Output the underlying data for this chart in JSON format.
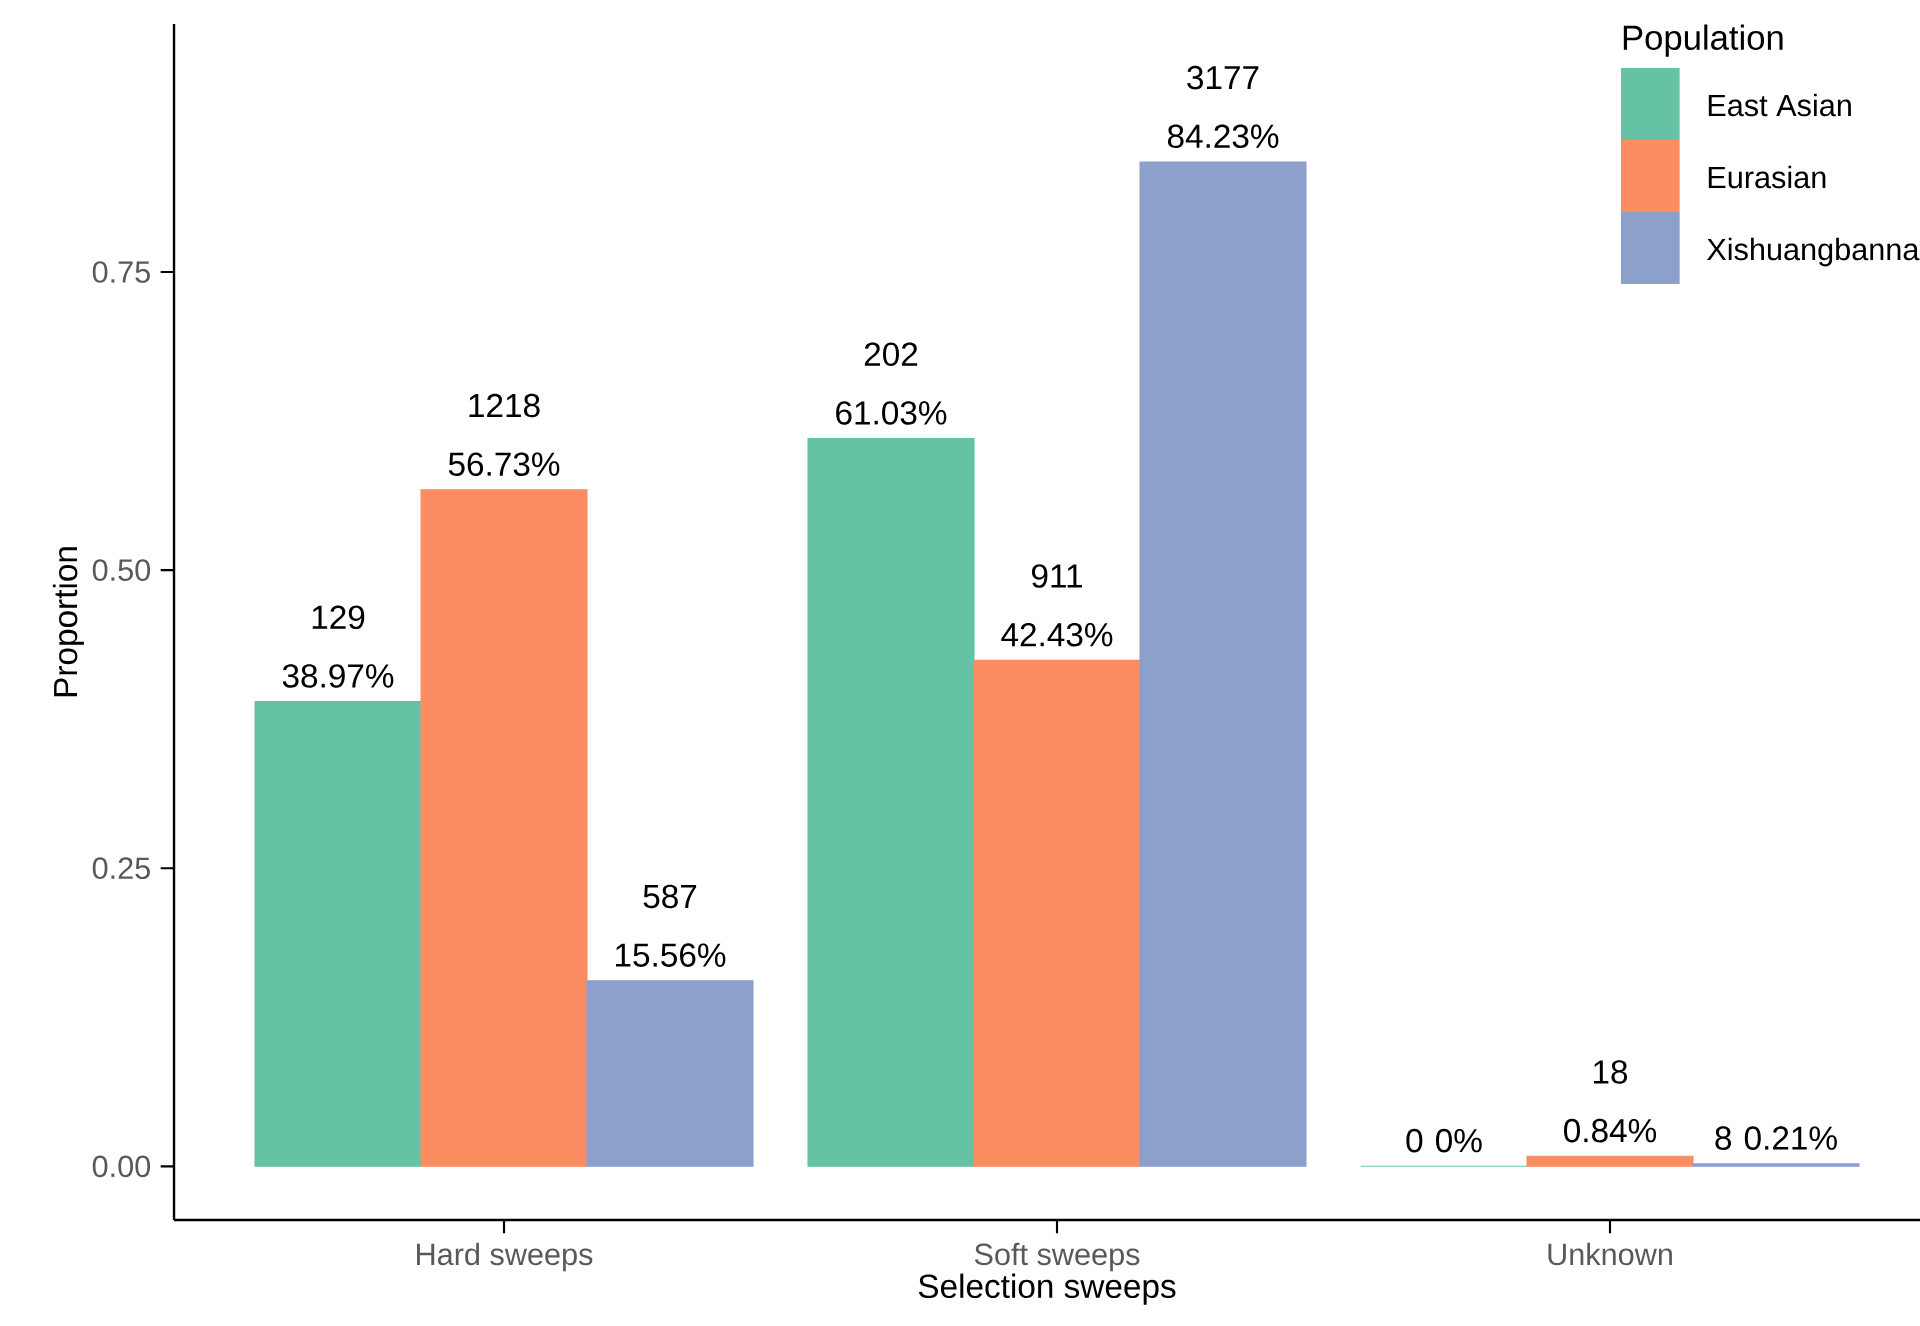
{
  "chart_data": {
    "type": "bar",
    "xlabel": "Selection sweeps",
    "ylabel": "Proportion",
    "legend_title": "Population",
    "categories": [
      "Hard sweeps",
      "Soft sweeps",
      "Unknown"
    ],
    "series": [
      {
        "name": "East Asian",
        "color": "#66c2a5",
        "values": [
          0.3897,
          0.6103,
          0
        ],
        "value_labels": [
          "129 38.97%",
          "202 61.03%",
          "0 0%"
        ]
      },
      {
        "name": "Eurasian",
        "color": "#fc8d62",
        "values": [
          0.5673,
          0.4243,
          0.0084
        ],
        "value_labels": [
          "1218 56.73%",
          "911 42.43%",
          "18 0.84%"
        ]
      },
      {
        "name": "Xishuangbanna",
        "color": "#8da0cb",
        "values": [
          0.1556,
          0.8423,
          0.0021
        ],
        "value_labels": [
          "587 15.56%",
          "3177 84.23%",
          "8 0.21%"
        ]
      }
    ],
    "ylim": [
      -0.045,
      0.958
    ],
    "yticks": [
      {
        "value": 0,
        "label": "0.00"
      },
      {
        "value": 0.25,
        "label": "0.25"
      },
      {
        "value": 0.5,
        "label": "0.50"
      },
      {
        "value": 0.75,
        "label": "0.75"
      }
    ],
    "grid": false,
    "legend": "top right"
  }
}
